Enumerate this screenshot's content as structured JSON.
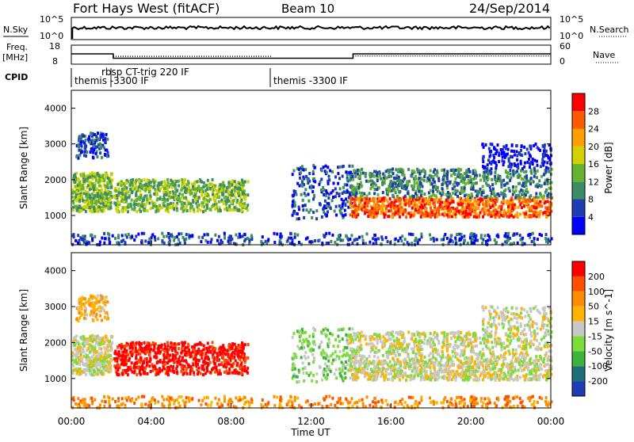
{
  "header": {
    "station": "Fort Hays West (fitACF)",
    "beam": "Beam 10",
    "date": "24/Sep/2014"
  },
  "params": {
    "nsky_label": "N.Sky",
    "nsearch_label": "N.Search",
    "nsky_ticks": [
      "10^5",
      "10^0"
    ],
    "nsearch_ticks": [
      "10^5",
      "10^0"
    ],
    "freq_label": "Freq.",
    "freq_unit": "[MHz]",
    "freq_ticks": [
      "18",
      "8"
    ],
    "nave_label": "Nave",
    "nave_ticks": [
      "60",
      "0"
    ],
    "cpid_label": "CPID",
    "cpid_segments": [
      {
        "label": "themis -3300 IF",
        "start_h": 0,
        "end_h": 2.1
      },
      {
        "label": "rbsp CT-trig 220 IF",
        "start_h": 2.1,
        "end_h": 10.0
      },
      {
        "label": "themis -3300 IF",
        "start_h": 10.0,
        "end_h": 24
      }
    ]
  },
  "colors": {
    "power_scale": [
      "#0000ff",
      "#1e3cb4",
      "#3c8c64",
      "#64b432",
      "#d2d200",
      "#ffa000",
      "#ff5a00",
      "#ff0000"
    ],
    "velocity_scale": [
      "#1e3cb4",
      "#1e6e78",
      "#3cb43c",
      "#7ddc3c",
      "#c8c8c8",
      "#ffb400",
      "#ff8c00",
      "#ff5000",
      "#ff0000"
    ]
  },
  "chart_data": [
    {
      "type": "heatmap",
      "name": "power",
      "ylabel": "Slant Range [km]",
      "xlabel": "",
      "ylim": [
        180,
        4500
      ],
      "xlim": [
        0,
        24
      ],
      "y_ticks": [
        1000,
        2000,
        3000,
        4000
      ],
      "colorbar_label": "Power [dB]",
      "colorbar_ticks": [
        "28",
        "24",
        "20",
        "16",
        "12",
        "8",
        "4"
      ],
      "colorbar_range": [
        0,
        30
      ]
    },
    {
      "type": "heatmap",
      "name": "velocity",
      "ylabel": "Slant Range [km]",
      "xlabel": "Time UT",
      "ylim": [
        180,
        4500
      ],
      "xlim": [
        0,
        24
      ],
      "y_ticks": [
        1000,
        2000,
        3000,
        4000
      ],
      "x_tick_labels": [
        "00:00",
        "04:00",
        "08:00",
        "12:00",
        "16:00",
        "20:00",
        "00:00"
      ],
      "colorbar_label": "Velocity [m s^-1]",
      "colorbar_ticks": [
        "200",
        "100",
        "50",
        "15",
        "-15",
        "-50",
        "-100",
        "-200"
      ],
      "colorbar_range": [
        -250,
        250
      ]
    }
  ]
}
